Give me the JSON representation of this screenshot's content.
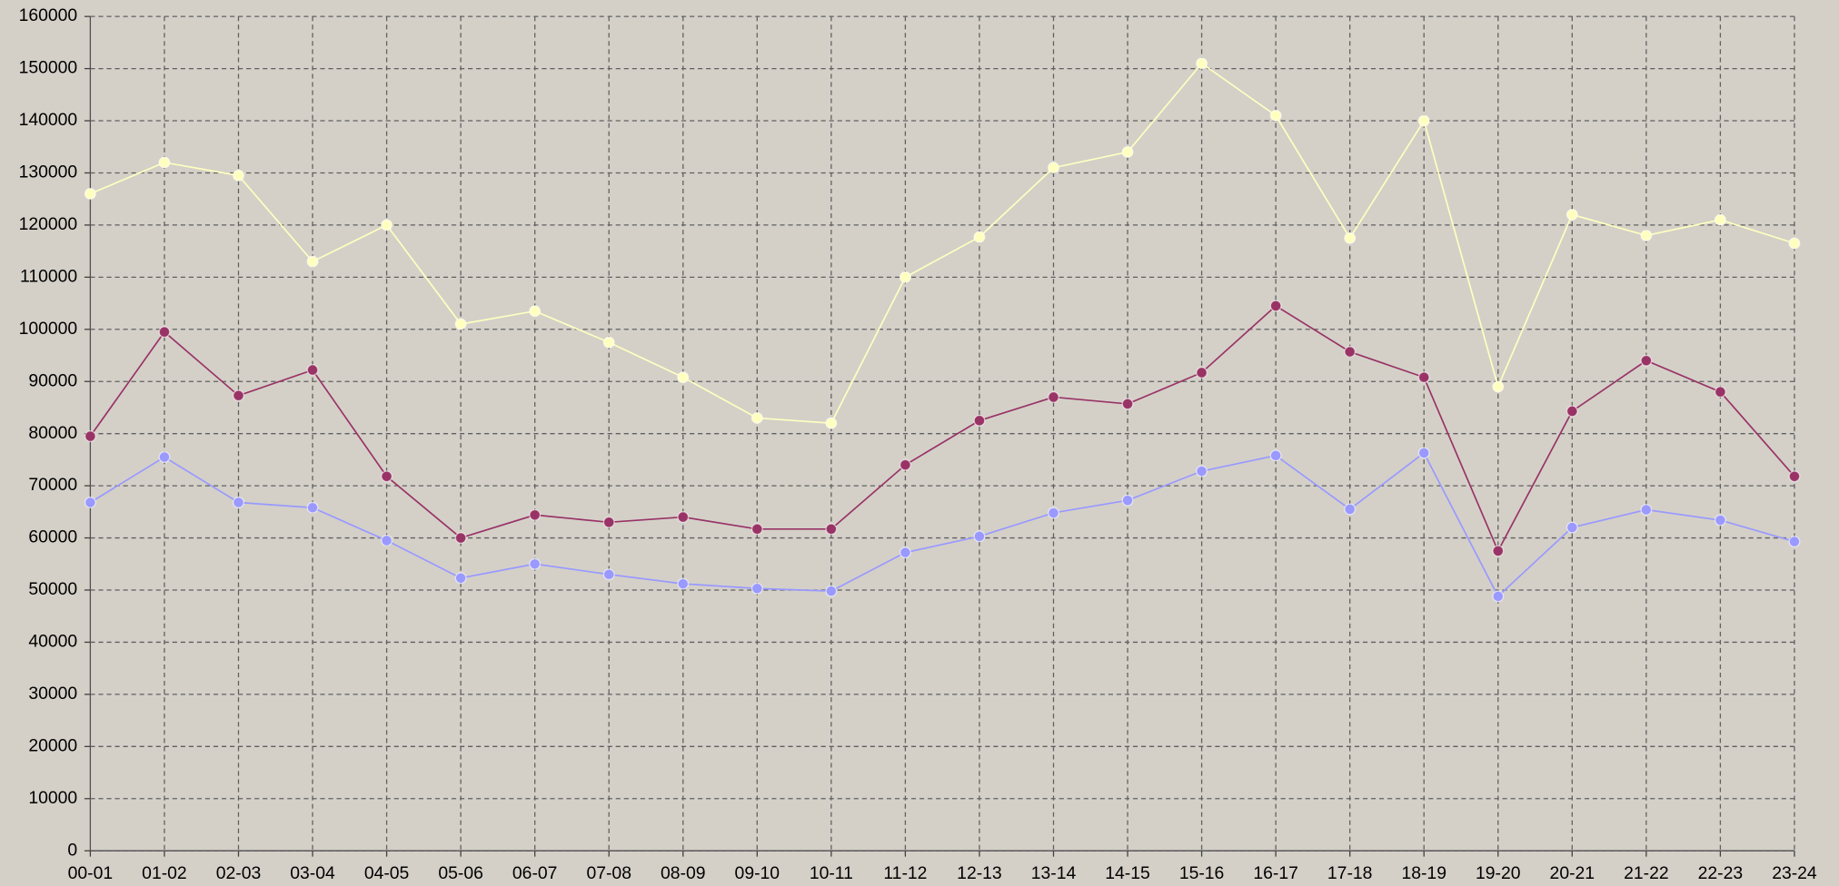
{
  "chart_data": {
    "type": "line",
    "categories": [
      "00-01",
      "01-02",
      "02-03",
      "03-04",
      "04-05",
      "05-06",
      "06-07",
      "07-08",
      "08-09",
      "09-10",
      "10-11",
      "11-12",
      "12-13",
      "13-14",
      "14-15",
      "15-16",
      "16-17",
      "17-18",
      "18-19",
      "19-20",
      "20-21",
      "21-22",
      "22-23",
      "23-24"
    ],
    "series": [
      {
        "color": "#ffffc0",
        "values": [
          126000,
          132000,
          129500,
          113000,
          120000,
          101000,
          103500,
          97500,
          90800,
          83000,
          82000,
          110000,
          117700,
          131000,
          134000,
          151000,
          141000,
          117500,
          140000,
          89000,
          122000,
          118000,
          121000,
          116500
        ]
      },
      {
        "color": "#993366",
        "values": [
          79500,
          99500,
          87300,
          92200,
          71800,
          60000,
          64400,
          63000,
          64000,
          61700,
          61700,
          74000,
          82500,
          87000,
          85700,
          91700,
          104500,
          95700,
          90800,
          57500,
          84300,
          94000,
          88000,
          71800
        ]
      },
      {
        "color": "#9999ff",
        "values": [
          66800,
          75500,
          66800,
          65800,
          59500,
          52300,
          55000,
          53000,
          51200,
          50300,
          49800,
          57200,
          60300,
          64800,
          67200,
          72800,
          75800,
          65500,
          76300,
          48800,
          62000,
          65400,
          63400,
          59300
        ]
      }
    ],
    "ylim": [
      0,
      160000
    ],
    "yticks": [
      0,
      10000,
      20000,
      30000,
      40000,
      50000,
      60000,
      70000,
      80000,
      90000,
      100000,
      110000,
      120000,
      130000,
      140000,
      150000,
      160000
    ],
    "grid": true
  }
}
